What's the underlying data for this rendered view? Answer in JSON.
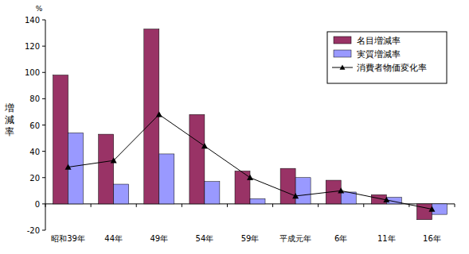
{
  "chart_data": {
    "type": "bar",
    "y_label": "増減率",
    "y_unit": "%",
    "categories": [
      "昭和39年",
      "44年",
      "49年",
      "54年",
      "59年",
      "平成元年",
      "6年",
      "11年",
      "16年"
    ],
    "series": [
      {
        "name": "名目増減率",
        "type": "bar",
        "color": "#993366",
        "values": [
          98,
          53,
          133,
          68,
          25,
          27,
          18,
          7,
          -12
        ]
      },
      {
        "name": "実質増減率",
        "type": "bar",
        "color": "#9999ff",
        "values": [
          54,
          15,
          38,
          17,
          4,
          20,
          9,
          5,
          -8
        ]
      },
      {
        "name": "消費者物価変化率",
        "type": "line",
        "color": "#000000",
        "marker": "triangle",
        "line_style": "solid",
        "values": [
          28,
          33,
          68,
          44,
          20,
          6,
          10,
          3,
          -4
        ]
      }
    ],
    "ylim": [
      -20,
      140
    ],
    "yticks": [
      -20,
      0,
      20,
      40,
      60,
      80,
      100,
      120,
      140
    ],
    "grid": false,
    "legend": "top-right"
  }
}
